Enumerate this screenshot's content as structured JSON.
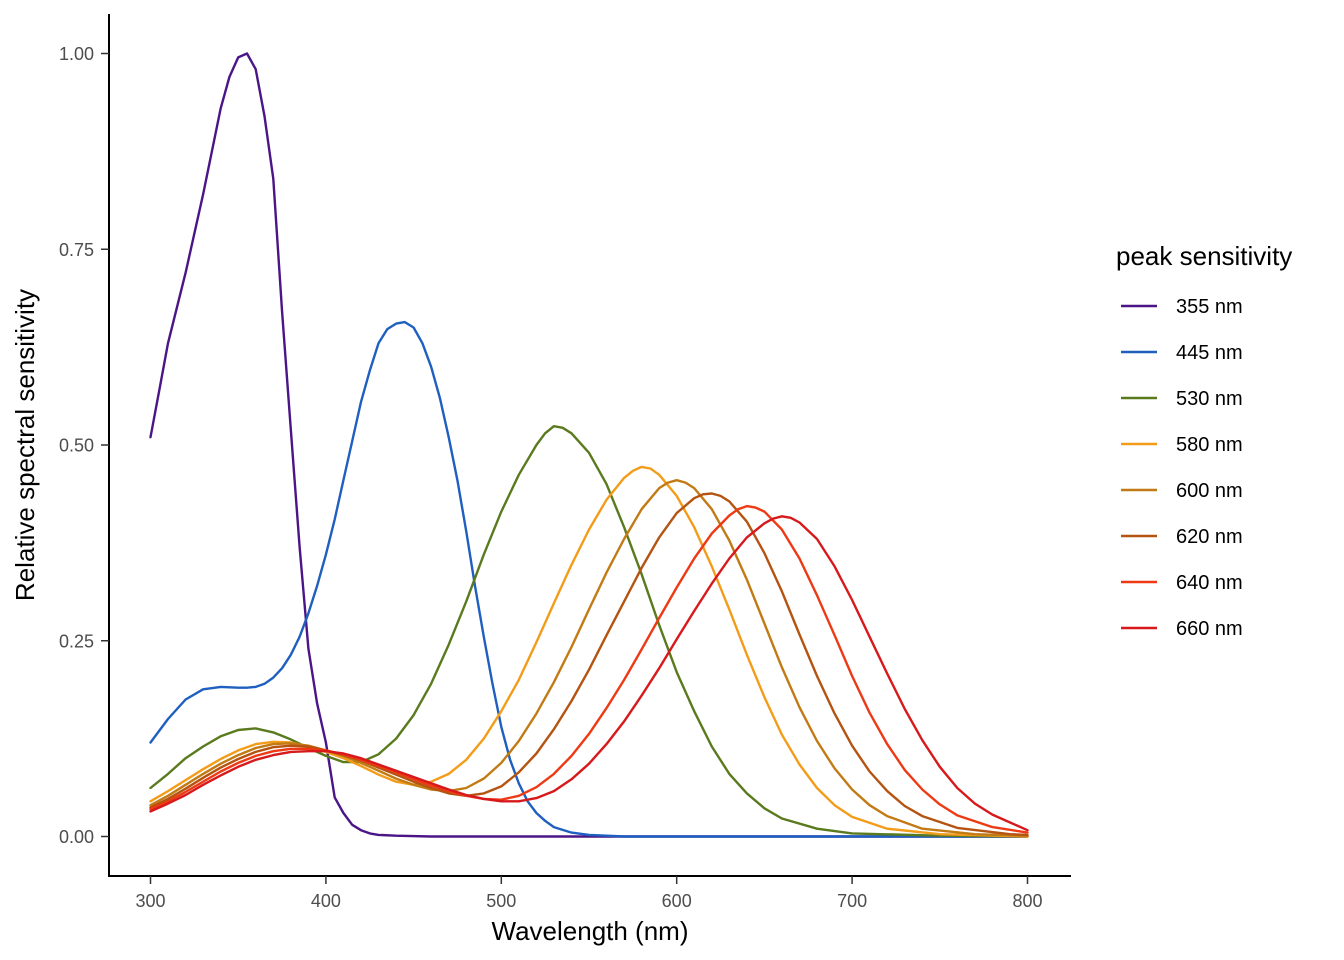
{
  "chart_data": {
    "type": "line",
    "title": "",
    "xlabel": "Wavelength (nm)",
    "ylabel": "Relative spectral sensitivity",
    "xlim": [
      275,
      825
    ],
    "ylim": [
      -0.05,
      1.05
    ],
    "x_ticks": [
      300,
      400,
      500,
      600,
      700,
      800
    ],
    "x_tick_labels": [
      "300",
      "400",
      "500",
      "600",
      "700",
      "800"
    ],
    "y_ticks": [
      0,
      0.25,
      0.5,
      0.75,
      1.0
    ],
    "y_tick_labels": [
      "0.00",
      "0.25",
      "0.50",
      "0.75",
      "1.00"
    ],
    "grid": false,
    "legend": {
      "title": "peak sensitivity",
      "position": "right"
    },
    "series": [
      {
        "name": "355 nm",
        "color": "#4b1587",
        "x": [
          300,
          305,
          310,
          320,
          330,
          340,
          345,
          350,
          355,
          360,
          365,
          370,
          375,
          380,
          385,
          390,
          395,
          400,
          405,
          410,
          415,
          420,
          425,
          430,
          440,
          460,
          500,
          600,
          700,
          800
        ],
        "y": [
          0.51,
          0.57,
          0.63,
          0.72,
          0.82,
          0.93,
          0.97,
          0.995,
          1.0,
          0.98,
          0.92,
          0.84,
          0.67,
          0.52,
          0.37,
          0.24,
          0.17,
          0.12,
          0.05,
          0.03,
          0.015,
          0.008,
          0.004,
          0.002,
          0.001,
          0,
          0,
          0,
          0,
          0
        ]
      },
      {
        "name": "445 nm",
        "color": "#1f5fbf",
        "x": [
          300,
          310,
          320,
          330,
          340,
          350,
          355,
          360,
          365,
          370,
          375,
          380,
          385,
          390,
          395,
          400,
          405,
          410,
          415,
          420,
          425,
          430,
          435,
          440,
          445,
          450,
          455,
          460,
          465,
          470,
          475,
          480,
          485,
          490,
          495,
          500,
          505,
          510,
          515,
          520,
          525,
          530,
          540,
          550,
          560,
          570,
          580,
          600,
          650,
          700,
          800
        ],
        "y": [
          0.12,
          0.15,
          0.175,
          0.188,
          0.191,
          0.19,
          0.19,
          0.191,
          0.195,
          0.203,
          0.215,
          0.232,
          0.255,
          0.285,
          0.32,
          0.36,
          0.405,
          0.455,
          0.505,
          0.555,
          0.595,
          0.63,
          0.648,
          0.655,
          0.657,
          0.65,
          0.63,
          0.6,
          0.56,
          0.51,
          0.455,
          0.39,
          0.32,
          0.255,
          0.195,
          0.14,
          0.098,
          0.068,
          0.045,
          0.03,
          0.02,
          0.012,
          0.005,
          0.002,
          0.001,
          0,
          0,
          0,
          0,
          0,
          0
        ]
      },
      {
        "name": "530 nm",
        "color": "#5a7a1e",
        "x": [
          300,
          310,
          320,
          330,
          340,
          350,
          360,
          370,
          380,
          390,
          400,
          410,
          420,
          430,
          440,
          450,
          460,
          470,
          480,
          490,
          500,
          510,
          520,
          525,
          530,
          535,
          540,
          550,
          560,
          570,
          580,
          590,
          600,
          610,
          620,
          630,
          640,
          650,
          660,
          680,
          700,
          750,
          800
        ],
        "y": [
          0.062,
          0.08,
          0.1,
          0.115,
          0.128,
          0.136,
          0.138,
          0.133,
          0.124,
          0.113,
          0.103,
          0.095,
          0.095,
          0.105,
          0.125,
          0.155,
          0.195,
          0.245,
          0.3,
          0.36,
          0.415,
          0.462,
          0.5,
          0.515,
          0.524,
          0.522,
          0.515,
          0.49,
          0.45,
          0.395,
          0.335,
          0.27,
          0.21,
          0.16,
          0.115,
          0.08,
          0.055,
          0.036,
          0.023,
          0.01,
          0.004,
          0.001,
          0
        ]
      },
      {
        "name": "580 nm",
        "color": "#f39c1a",
        "x": [
          300,
          310,
          320,
          330,
          340,
          350,
          360,
          370,
          380,
          390,
          400,
          410,
          420,
          430,
          440,
          450,
          460,
          470,
          480,
          490,
          500,
          510,
          520,
          530,
          540,
          550,
          560,
          570,
          575,
          580,
          585,
          590,
          600,
          610,
          620,
          630,
          640,
          650,
          660,
          670,
          680,
          690,
          700,
          720,
          750,
          800
        ],
        "y": [
          0.045,
          0.058,
          0.072,
          0.086,
          0.099,
          0.11,
          0.118,
          0.121,
          0.12,
          0.115,
          0.108,
          0.1,
          0.09,
          0.079,
          0.07,
          0.066,
          0.07,
          0.08,
          0.098,
          0.125,
          0.16,
          0.2,
          0.248,
          0.298,
          0.347,
          0.392,
          0.43,
          0.458,
          0.467,
          0.472,
          0.47,
          0.462,
          0.435,
          0.395,
          0.345,
          0.29,
          0.232,
          0.178,
          0.13,
          0.092,
          0.062,
          0.04,
          0.025,
          0.01,
          0.003,
          0
        ]
      },
      {
        "name": "600 nm",
        "color": "#c27a14",
        "x": [
          300,
          310,
          320,
          330,
          340,
          350,
          360,
          370,
          380,
          390,
          400,
          410,
          420,
          430,
          440,
          450,
          460,
          470,
          480,
          490,
          500,
          510,
          520,
          530,
          540,
          550,
          560,
          570,
          580,
          590,
          595,
          600,
          605,
          610,
          620,
          630,
          640,
          650,
          660,
          670,
          680,
          690,
          700,
          710,
          720,
          740,
          770,
          800
        ],
        "y": [
          0.04,
          0.052,
          0.066,
          0.08,
          0.093,
          0.104,
          0.113,
          0.118,
          0.119,
          0.116,
          0.11,
          0.103,
          0.094,
          0.084,
          0.074,
          0.066,
          0.06,
          0.058,
          0.062,
          0.074,
          0.094,
          0.122,
          0.157,
          0.197,
          0.242,
          0.29,
          0.337,
          0.38,
          0.418,
          0.445,
          0.452,
          0.455,
          0.452,
          0.445,
          0.418,
          0.378,
          0.328,
          0.272,
          0.216,
          0.165,
          0.122,
          0.087,
          0.06,
          0.04,
          0.026,
          0.01,
          0.003,
          0.001
        ]
      },
      {
        "name": "620 nm",
        "color": "#b55311",
        "x": [
          300,
          310,
          320,
          330,
          340,
          350,
          360,
          370,
          380,
          390,
          400,
          410,
          420,
          430,
          440,
          450,
          460,
          470,
          480,
          490,
          500,
          510,
          520,
          530,
          540,
          550,
          560,
          570,
          580,
          590,
          600,
          610,
          615,
          620,
          625,
          630,
          640,
          650,
          660,
          670,
          680,
          690,
          700,
          710,
          720,
          730,
          740,
          760,
          790,
          800
        ],
        "y": [
          0.037,
          0.048,
          0.061,
          0.075,
          0.088,
          0.099,
          0.108,
          0.114,
          0.116,
          0.115,
          0.11,
          0.104,
          0.097,
          0.088,
          0.079,
          0.07,
          0.062,
          0.055,
          0.052,
          0.055,
          0.064,
          0.082,
          0.106,
          0.137,
          0.173,
          0.213,
          0.257,
          0.3,
          0.343,
          0.382,
          0.413,
          0.432,
          0.437,
          0.438,
          0.435,
          0.428,
          0.402,
          0.362,
          0.313,
          0.258,
          0.205,
          0.157,
          0.116,
          0.083,
          0.058,
          0.039,
          0.026,
          0.011,
          0.003,
          0.002
        ]
      },
      {
        "name": "640 nm",
        "color": "#ee3a14",
        "x": [
          300,
          310,
          320,
          330,
          340,
          350,
          360,
          370,
          380,
          390,
          400,
          410,
          420,
          430,
          440,
          450,
          460,
          470,
          480,
          490,
          500,
          510,
          520,
          530,
          540,
          550,
          560,
          570,
          580,
          590,
          600,
          610,
          620,
          630,
          635,
          640,
          645,
          650,
          660,
          670,
          680,
          690,
          700,
          710,
          720,
          730,
          740,
          750,
          760,
          780,
          800
        ],
        "y": [
          0.035,
          0.045,
          0.057,
          0.07,
          0.083,
          0.094,
          0.103,
          0.109,
          0.112,
          0.112,
          0.11,
          0.105,
          0.098,
          0.09,
          0.082,
          0.073,
          0.065,
          0.058,
          0.052,
          0.048,
          0.047,
          0.052,
          0.063,
          0.08,
          0.103,
          0.131,
          0.164,
          0.2,
          0.239,
          0.279,
          0.318,
          0.355,
          0.387,
          0.41,
          0.418,
          0.422,
          0.42,
          0.415,
          0.392,
          0.355,
          0.308,
          0.257,
          0.205,
          0.158,
          0.118,
          0.085,
          0.06,
          0.041,
          0.027,
          0.012,
          0.005
        ]
      },
      {
        "name": "660 nm",
        "color": "#d7191c",
        "x": [
          300,
          310,
          320,
          330,
          340,
          350,
          360,
          370,
          380,
          390,
          400,
          410,
          420,
          430,
          440,
          450,
          460,
          470,
          480,
          490,
          500,
          510,
          520,
          530,
          540,
          550,
          560,
          570,
          580,
          590,
          600,
          610,
          620,
          630,
          640,
          650,
          655,
          660,
          665,
          670,
          680,
          690,
          700,
          710,
          720,
          730,
          740,
          750,
          760,
          770,
          780,
          800
        ],
        "y": [
          0.032,
          0.042,
          0.053,
          0.066,
          0.078,
          0.089,
          0.098,
          0.104,
          0.108,
          0.109,
          0.109,
          0.106,
          0.1,
          0.092,
          0.084,
          0.076,
          0.068,
          0.06,
          0.053,
          0.048,
          0.045,
          0.045,
          0.049,
          0.058,
          0.073,
          0.093,
          0.118,
          0.147,
          0.18,
          0.215,
          0.252,
          0.288,
          0.323,
          0.355,
          0.382,
          0.4,
          0.406,
          0.409,
          0.407,
          0.401,
          0.38,
          0.345,
          0.302,
          0.255,
          0.208,
          0.163,
          0.123,
          0.089,
          0.062,
          0.042,
          0.028,
          0.008
        ]
      }
    ]
  }
}
